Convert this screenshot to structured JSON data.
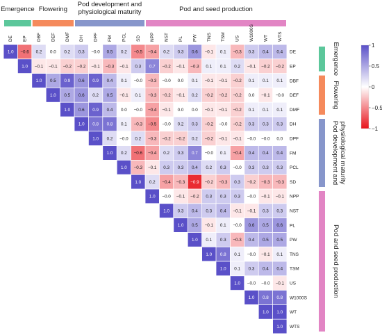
{
  "chart_data": {
    "type": "heatmap",
    "shape": "upper-triangular correlation matrix",
    "variables": [
      "DE",
      "EP",
      "DBF",
      "DEF",
      "DMF",
      "DH",
      "DPF",
      "FM",
      "PCL",
      "SD",
      "NPP",
      "NST",
      "PL",
      "PW",
      "TNS",
      "TSM",
      "US",
      "W1000S",
      "WT",
      "WTS"
    ],
    "groups": [
      {
        "name": "Emergence",
        "from": 0,
        "to": 1,
        "color": "#5cc79b"
      },
      {
        "name": "Flowering",
        "from": 2,
        "to": 4,
        "color": "#f58a5c"
      },
      {
        "name": "Pod development and physiological maturity",
        "from": 5,
        "to": 9,
        "color": "#8796cb"
      },
      {
        "name": "Pod and seed production",
        "from": 10,
        "to": 19,
        "color": "#e285c4"
      }
    ],
    "side_groups": [
      {
        "name": "Emergence",
        "from": 0,
        "to": 1
      },
      {
        "name": "Flowering",
        "from": 2,
        "to": 4
      },
      {
        "name": "Pod development and physiological maturity",
        "from": 5,
        "to": 9
      },
      {
        "name": "Pod and seed production",
        "from": 10,
        "to": 19
      }
    ],
    "rows": [
      [
        "1.0",
        "−0.6",
        "0.2",
        "0.0",
        "0.2",
        "0.3",
        "−0.0",
        "0.5",
        "0.2",
        "−0.5",
        "−0.4",
        "0.2",
        "0.3",
        "0.6",
        "−0.1",
        "0.1",
        "−0.3",
        "0.3",
        "0.4",
        "0.4"
      ],
      [
        "1.0",
        "−0.1",
        "−0.1",
        "−0.2",
        "−0.2",
        "−0.1",
        "−0.3",
        "−0.1",
        "0.3",
        "0.7",
        "−0.2",
        "−0.1",
        "−0.3",
        "0.1",
        "0.1",
        "0.2",
        "−0.1",
        "−0.2",
        "−0.2"
      ],
      [
        "1.0",
        "0.5",
        "0.9",
        "0.6",
        "0.9",
        "0.4",
        "0.1",
        "−0.0",
        "−0.3",
        "−0.0",
        "0.0",
        "0.1",
        "−0.1",
        "−0.1",
        "−0.2",
        "0.1",
        "0.1",
        "0.1"
      ],
      [
        "1.0",
        "0.5",
        "0.6",
        "0.2",
        "0.5",
        "−0.1",
        "0.1",
        "−0.3",
        "−0.2",
        "−0.1",
        "0.2",
        "−0.2",
        "−0.2",
        "−0.2",
        "0.0",
        "−0.1",
        "−0.0"
      ],
      [
        "1.0",
        "0.6",
        "0.9",
        "0.4",
        "0.0",
        "−0.0",
        "−0.4",
        "−0.1",
        "0.0",
        "0.0",
        "−0.1",
        "−0.1",
        "−0.2",
        "0.1",
        "0.1",
        "0.1"
      ],
      [
        "1.0",
        "0.8",
        "0.8",
        "0.1",
        "−0.3",
        "−0.5",
        "−0.0",
        "0.2",
        "0.3",
        "−0.2",
        "−0.0",
        "−0.2",
        "0.3",
        "0.3",
        "0.3"
      ],
      [
        "1.0",
        "0.2",
        "−0.0",
        "0.2",
        "−0.3",
        "−0.2",
        "−0.2",
        "0.2",
        "−0.2",
        "−0.1",
        "−0.1",
        "−0.0",
        "−0.0",
        "0.0"
      ],
      [
        "1.0",
        "0.2",
        "−0.6",
        "−0.4",
        "0.2",
        "0.3",
        "0.7",
        "−0.0",
        "0.1",
        "−0.4",
        "0.4",
        "0.4",
        "0.4"
      ],
      [
        "1.0",
        "−0.3",
        "−0.1",
        "0.3",
        "0.3",
        "0.4",
        "0.2",
        "0.3",
        "−0.0",
        "0.3",
        "0.3",
        "0.3"
      ],
      [
        "1.0",
        "0.2",
        "−0.4",
        "−0.3",
        "−0.9",
        "−0.2",
        "−0.3",
        "0.3",
        "−0.2",
        "−0.3",
        "−0.3"
      ],
      [
        "1.0",
        "−0.0",
        "−0.1",
        "−0.2",
        "0.3",
        "0.3",
        "0.3",
        "−0.0",
        "−0.1",
        "−0.1"
      ],
      [
        "1.0",
        "0.3",
        "0.4",
        "0.3",
        "0.4",
        "−0.1",
        "−0.1",
        "0.3",
        "0.3"
      ],
      [
        "1.0",
        "0.5",
        "−0.1",
        "0.1",
        "−0.0",
        "0.6",
        "0.5",
        "0.6"
      ],
      [
        "1.0",
        "0.1",
        "0.3",
        "−0.3",
        "0.4",
        "0.5",
        "0.5"
      ],
      [
        "1.0",
        "0.8",
        "0.1",
        "−0.0",
        "−0.1",
        "0.1"
      ],
      [
        "1.0",
        "0.1",
        "0.3",
        "0.4",
        "0.4"
      ],
      [
        "1.0",
        "−0.0",
        "−0.0",
        "−0.1"
      ],
      [
        "1.0",
        "0.8",
        "0.8"
      ],
      [
        "1.0",
        "1.0"
      ],
      [
        "1.0"
      ]
    ],
    "colorbar": {
      "min": -1,
      "max": 1,
      "ticks": [
        "1",
        "0.5",
        "0",
        "−0.5",
        "−1"
      ],
      "low_color": "#e8131b",
      "mid_color": "#ffffff",
      "high_color": "#5a50c8"
    }
  }
}
